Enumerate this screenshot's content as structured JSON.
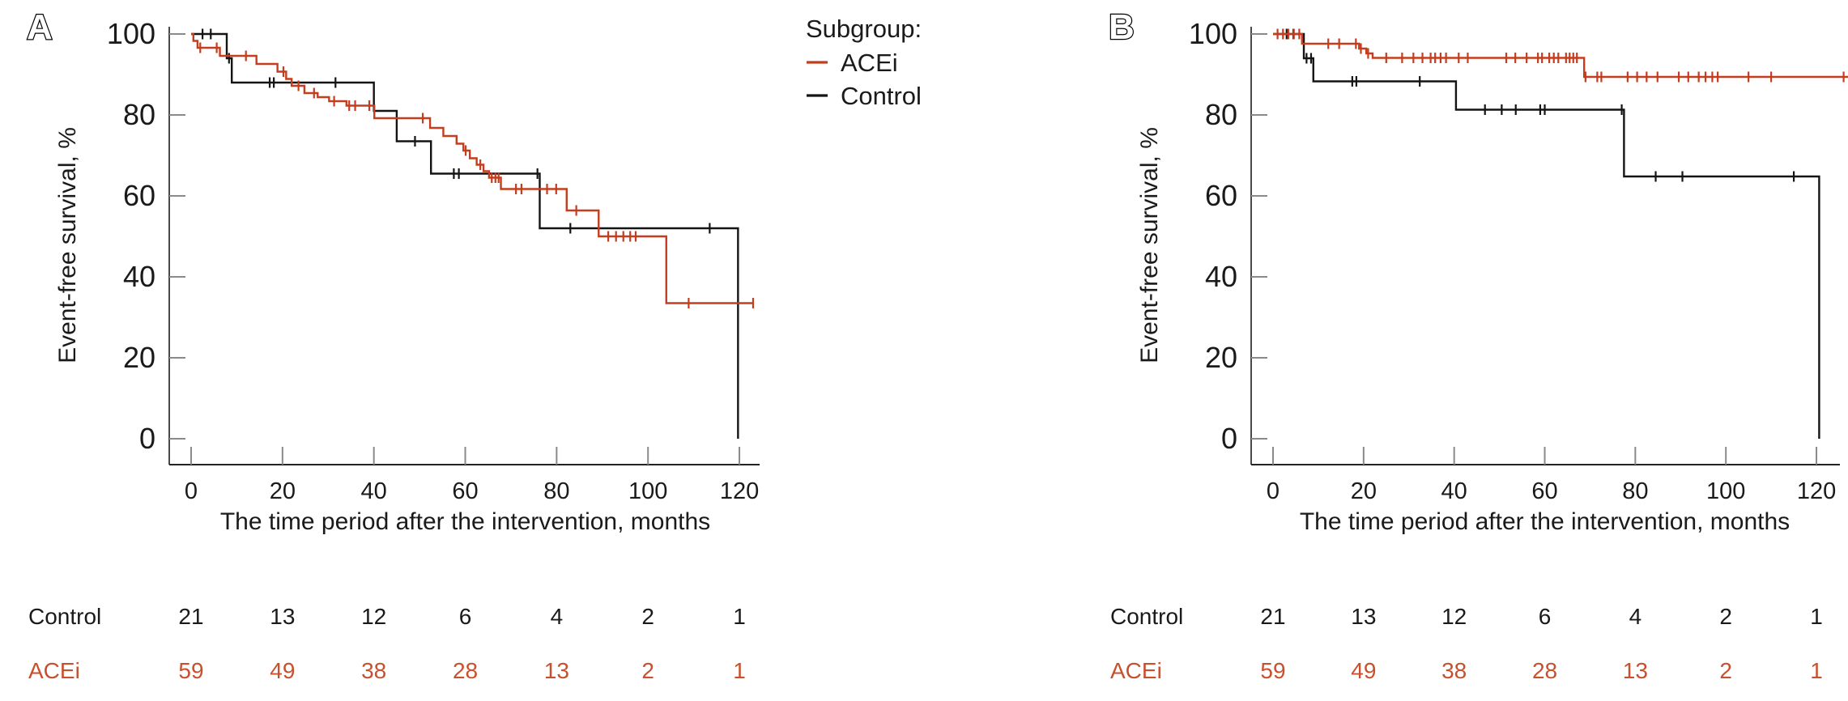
{
  "figure": {
    "y_axis_label": "Event-free survival, %",
    "x_axis_label": "The time period after the intervention, months",
    "panel_a_label": "A",
    "panel_b_label": "B",
    "legend": {
      "title": "Subgroup:",
      "items": [
        {
          "label": "ACEi",
          "color": "#c33d1e"
        },
        {
          "label": "Control",
          "color": "#141414"
        }
      ]
    },
    "colors": {
      "acei_line": "#c33d1e",
      "control_line": "#141414",
      "red_text": "#c8502c",
      "black_text": "#1a1a1a",
      "axis_line": "#4a4a4a",
      "tick_mark": "#8a8a8a"
    }
  },
  "chart_data": [
    {
      "type": "line",
      "panel_label": "A",
      "xlabel": "The time period after the intervention, months",
      "ylabel": "Event-free survival, %",
      "xlim": [
        0,
        120
      ],
      "ylim": [
        0,
        100
      ],
      "xticks": [
        0,
        20,
        40,
        60,
        80,
        100,
        120
      ],
      "yticks": [
        0,
        20,
        40,
        60,
        80,
        100
      ],
      "grid": false,
      "legend_position": "right-of-panel",
      "series": [
        {
          "name": "Control",
          "color": "#141414",
          "start": [
            0,
            100
          ],
          "end_t": 119.7,
          "drops": [
            [
              7.8,
              94
            ],
            [
              8.9,
              88
            ],
            [
              40,
              81
            ],
            [
              45,
              73.5
            ],
            [
              52.5,
              65.5
            ],
            [
              76.3,
              52
            ],
            [
              119.7,
              0
            ]
          ],
          "censors": [
            [
              2.5,
              100
            ],
            [
              4.3,
              100
            ],
            [
              8.3,
              94
            ],
            [
              17.2,
              88
            ],
            [
              18.1,
              88
            ],
            [
              31.6,
              88
            ],
            [
              49,
              73.5
            ],
            [
              57.5,
              65.5
            ],
            [
              58.6,
              65.5
            ],
            [
              75.8,
              65.5
            ],
            [
              83,
              52
            ],
            [
              113.5,
              52
            ]
          ]
        },
        {
          "name": "ACEi",
          "color": "#c33d1e",
          "start": [
            0,
            100
          ],
          "end_t": 123,
          "drops": [
            [
              0.5,
              98.3
            ],
            [
              1.4,
              96.6
            ],
            [
              6.3,
              94.6
            ],
            [
              14.3,
              92.6
            ],
            [
              18.9,
              90.7
            ],
            [
              20.8,
              88.9
            ],
            [
              22,
              87.2
            ],
            [
              24.8,
              85.4
            ],
            [
              27.7,
              84.4
            ],
            [
              30.2,
              83.4
            ],
            [
              34,
              82.3
            ],
            [
              40.1,
              79.2
            ],
            [
              52.3,
              76.8
            ],
            [
              55.2,
              74.8
            ],
            [
              58.1,
              72.9
            ],
            [
              59.6,
              71.2
            ],
            [
              61,
              69.3
            ],
            [
              62.5,
              67.7
            ],
            [
              64,
              66.1
            ],
            [
              65.2,
              64.5
            ],
            [
              67.8,
              61.7
            ],
            [
              82.2,
              56.4
            ],
            [
              89.2,
              50
            ],
            [
              104,
              33.5
            ]
          ],
          "censors": [
            [
              2,
              96.6
            ],
            [
              5.6,
              96.6
            ],
            [
              12,
              94.6
            ],
            [
              20.2,
              90.7
            ],
            [
              23.5,
              87.2
            ],
            [
              26.9,
              85.4
            ],
            [
              31.3,
              83.4
            ],
            [
              34.6,
              82.3
            ],
            [
              35.9,
              82.3
            ],
            [
              39,
              82.3
            ],
            [
              50.7,
              79.2
            ],
            [
              60.1,
              71.2
            ],
            [
              63.3,
              67.7
            ],
            [
              65.8,
              64.5
            ],
            [
              66.6,
              64.5
            ],
            [
              67.3,
              64.5
            ],
            [
              71.1,
              61.7
            ],
            [
              72.3,
              61.7
            ],
            [
              77.9,
              61.7
            ],
            [
              79.9,
              61.7
            ],
            [
              84.3,
              56.4
            ],
            [
              91.3,
              50
            ],
            [
              93,
              50
            ],
            [
              94.6,
              50
            ],
            [
              96.1,
              50
            ],
            [
              97.3,
              50
            ],
            [
              108.9,
              33.5
            ],
            [
              123,
              33.5
            ]
          ]
        }
      ],
      "risk_table": {
        "times": [
          0,
          20,
          40,
          60,
          80,
          100,
          120
        ],
        "rows": [
          {
            "label": "Control",
            "color": "#1a1a1a",
            "values": [
              "21",
              "13",
              "12",
              "6",
              "4",
              "2",
              "1"
            ]
          },
          {
            "label": "ACEi",
            "color": "#c8502c",
            "values": [
              "59",
              "49",
              "38",
              "28",
              "13",
              "2",
              "1"
            ]
          }
        ]
      }
    },
    {
      "type": "line",
      "panel_label": "B",
      "xlabel": "The time period after the intervention, months",
      "ylabel": "Event-free survival, %",
      "xlim": [
        0,
        120
      ],
      "ylim": [
        0,
        100
      ],
      "xticks": [
        0,
        20,
        40,
        60,
        80,
        100,
        120
      ],
      "yticks": [
        0,
        20,
        40,
        60,
        80,
        100
      ],
      "grid": false,
      "legend_position": "none",
      "series": [
        {
          "name": "Control",
          "color": "#141414",
          "start": [
            0,
            100
          ],
          "end_t": 120.6,
          "drops": [
            [
              6.8,
              94
            ],
            [
              8.9,
              88.3
            ],
            [
              40.4,
              81.3
            ],
            [
              77.5,
              64.8
            ],
            [
              120.6,
              0
            ]
          ],
          "censors": [
            [
              3,
              100
            ],
            [
              4.5,
              100
            ],
            [
              7.4,
              94
            ],
            [
              8.4,
              94
            ],
            [
              17.5,
              88.3
            ],
            [
              18.4,
              88.3
            ],
            [
              32.4,
              88.3
            ],
            [
              46.8,
              81.3
            ],
            [
              50.5,
              81.3
            ],
            [
              53.6,
              81.3
            ],
            [
              59,
              81.3
            ],
            [
              60,
              81.3
            ],
            [
              77,
              81.3
            ],
            [
              84.5,
              64.8
            ],
            [
              90.4,
              64.8
            ],
            [
              115,
              64.8
            ]
          ]
        },
        {
          "name": "ACEi",
          "color": "#c33d1e",
          "start": [
            0,
            100
          ],
          "end_t": 127,
          "drops": [
            [
              6.4,
              97.6
            ],
            [
              19,
              96.4
            ],
            [
              20.6,
              95.2
            ],
            [
              22,
              94.1
            ],
            [
              68.7,
              89.4
            ]
          ],
          "censors": [
            [
              1,
              100
            ],
            [
              2.2,
              100
            ],
            [
              3.4,
              100
            ],
            [
              4.6,
              100
            ],
            [
              5.8,
              100
            ],
            [
              12.2,
              97.6
            ],
            [
              14.6,
              97.6
            ],
            [
              18.3,
              97.6
            ],
            [
              19.4,
              96.4
            ],
            [
              21,
              95.2
            ],
            [
              25,
              94.1
            ],
            [
              28.5,
              94.1
            ],
            [
              31,
              94.1
            ],
            [
              33,
              94.1
            ],
            [
              34.8,
              94.1
            ],
            [
              35.8,
              94.1
            ],
            [
              37,
              94.1
            ],
            [
              38.2,
              94.1
            ],
            [
              41,
              94.1
            ],
            [
              43,
              94.1
            ],
            [
              51.5,
              94.1
            ],
            [
              53.5,
              94.1
            ],
            [
              56,
              94.1
            ],
            [
              58.5,
              94.1
            ],
            [
              59.4,
              94.1
            ],
            [
              61,
              94.1
            ],
            [
              62,
              94.1
            ],
            [
              63,
              94.1
            ],
            [
              64.7,
              94.1
            ],
            [
              65.5,
              94.1
            ],
            [
              66.3,
              94.1
            ],
            [
              67.1,
              94.1
            ],
            [
              69,
              89.4
            ],
            [
              71.6,
              89.4
            ],
            [
              72.5,
              89.4
            ],
            [
              78.3,
              89.4
            ],
            [
              80.4,
              89.4
            ],
            [
              82.5,
              89.4
            ],
            [
              84.9,
              89.4
            ],
            [
              89.6,
              89.4
            ],
            [
              91.7,
              89.4
            ],
            [
              94,
              89.4
            ],
            [
              95.5,
              89.4
            ],
            [
              97,
              89.4
            ],
            [
              98.2,
              89.4
            ],
            [
              105,
              89.4
            ],
            [
              110,
              89.4
            ],
            [
              126,
              89.4
            ]
          ]
        }
      ],
      "risk_table": {
        "times": [
          0,
          20,
          40,
          60,
          80,
          100,
          120
        ],
        "rows": [
          {
            "label": "Control",
            "color": "#1a1a1a",
            "values": [
              "21",
              "13",
              "12",
              "6",
              "4",
              "2",
              "1"
            ]
          },
          {
            "label": "ACEi",
            "color": "#c8502c",
            "values": [
              "59",
              "49",
              "38",
              "28",
              "13",
              "2",
              "1"
            ]
          }
        ]
      }
    }
  ]
}
